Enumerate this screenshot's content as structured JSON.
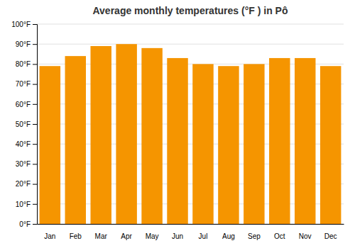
{
  "chart_data": {
    "type": "bar",
    "title": "Average monthly temperatures (°F ) in Pô",
    "categories": [
      "Jan",
      "Feb",
      "Mar",
      "Apr",
      "May",
      "Jun",
      "Jul",
      "Aug",
      "Sep",
      "Oct",
      "Nov",
      "Dec"
    ],
    "values": [
      79,
      84,
      89,
      90,
      88,
      83,
      80,
      79,
      80,
      83,
      83,
      79
    ],
    "color": "#F59500",
    "ylim": [
      0,
      100
    ],
    "yticks": [
      {
        "value": 0,
        "label": "0°F"
      },
      {
        "value": 10,
        "label": "10°F"
      },
      {
        "value": 20,
        "label": "20°F"
      },
      {
        "value": 30,
        "label": "30°F"
      },
      {
        "value": 40,
        "label": "40°F"
      },
      {
        "value": 50,
        "label": "50°F"
      },
      {
        "value": 60,
        "label": "60°F"
      },
      {
        "value": 70,
        "label": "70°F"
      },
      {
        "value": 80,
        "label": "80°F"
      },
      {
        "value": 90,
        "label": "90°F"
      },
      {
        "value": 100,
        "label": "100°F"
      }
    ],
    "grid": true
  }
}
